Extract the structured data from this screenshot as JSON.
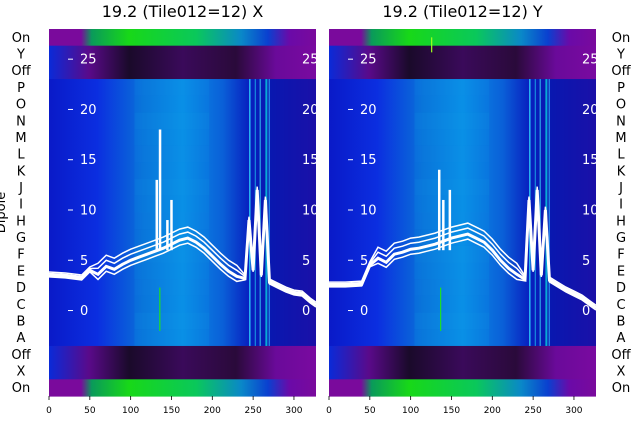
{
  "chart_data": [
    {
      "type": "heatmap",
      "title": "19.2 (Tile012=12) X",
      "ylabel": "Dipole",
      "xlim": [
        0,
        327
      ],
      "xticks": [
        0,
        50,
        100,
        150,
        200,
        250,
        300
      ],
      "overlay_yticks": [
        0,
        5,
        10,
        15,
        20,
        25
      ],
      "overlay_ylim": [
        -8.5,
        28
      ],
      "rows_top_to_bottom": [
        "On",
        "Y",
        "Off",
        "P",
        "O",
        "N",
        "M",
        "L",
        "K",
        "J",
        "I",
        "H",
        "G",
        "F",
        "E",
        "D",
        "C",
        "B",
        "A",
        "Off",
        "X",
        "On"
      ],
      "overlay_curve_x": [
        0,
        20,
        40,
        50,
        60,
        70,
        80,
        90,
        100,
        110,
        120,
        130,
        140,
        150,
        160,
        170,
        180,
        190,
        200,
        210,
        220,
        230,
        240,
        245,
        250,
        255,
        260,
        265,
        270,
        280,
        290,
        300,
        310,
        320,
        327
      ],
      "overlay_curve_y": [
        3.5,
        3.4,
        3.2,
        4.0,
        3.6,
        4.4,
        4.1,
        4.6,
        5.0,
        5.3,
        5.6,
        5.9,
        6.2,
        6.6,
        7.0,
        7.2,
        6.8,
        6.2,
        5.4,
        4.6,
        3.9,
        3.4,
        3.2,
        9,
        4,
        12,
        3.5,
        11,
        2.8,
        2.4,
        2.0,
        1.7,
        1.6,
        0.9,
        0.5
      ],
      "overlay_spikes": [
        {
          "x": 132,
          "y": 13
        },
        {
          "x": 136,
          "y": 18
        },
        {
          "x": 145,
          "y": 9
        },
        {
          "x": 150,
          "y": 11
        }
      ]
    },
    {
      "type": "heatmap",
      "title": "19.2 (Tile012=12) Y",
      "ylabel": "",
      "xlim": [
        0,
        327
      ],
      "xticks": [
        0,
        50,
        100,
        150,
        200,
        250,
        300
      ],
      "overlay_yticks": [
        0,
        5,
        10,
        15,
        20,
        25
      ],
      "overlay_ylim": [
        -8.5,
        28
      ],
      "rows_top_to_bottom": [
        "On",
        "Y",
        "Off",
        "P",
        "O",
        "N",
        "M",
        "L",
        "K",
        "J",
        "I",
        "H",
        "G",
        "F",
        "E",
        "D",
        "C",
        "B",
        "A",
        "Off",
        "X",
        "On"
      ],
      "overlay_curve_x": [
        0,
        20,
        40,
        50,
        60,
        70,
        80,
        90,
        100,
        110,
        120,
        130,
        140,
        150,
        160,
        170,
        180,
        190,
        200,
        210,
        220,
        230,
        240,
        245,
        250,
        255,
        260,
        265,
        270,
        280,
        290,
        300,
        310,
        320,
        327
      ],
      "overlay_curve_y": [
        2.5,
        2.5,
        2.6,
        4.5,
        5.2,
        4.8,
        5.6,
        5.8,
        6.1,
        6.2,
        6.4,
        6.6,
        6.9,
        7.2,
        7.4,
        7.6,
        7.2,
        6.8,
        6.0,
        5.0,
        4.2,
        3.6,
        3.1,
        11,
        4,
        12,
        3.5,
        10,
        3.0,
        2.5,
        2.0,
        1.6,
        1.2,
        0.6,
        0.2
      ],
      "overlay_spikes": [
        {
          "x": 135,
          "y": 14
        },
        {
          "x": 140,
          "y": 11
        },
        {
          "x": 148,
          "y": 12
        }
      ]
    }
  ]
}
